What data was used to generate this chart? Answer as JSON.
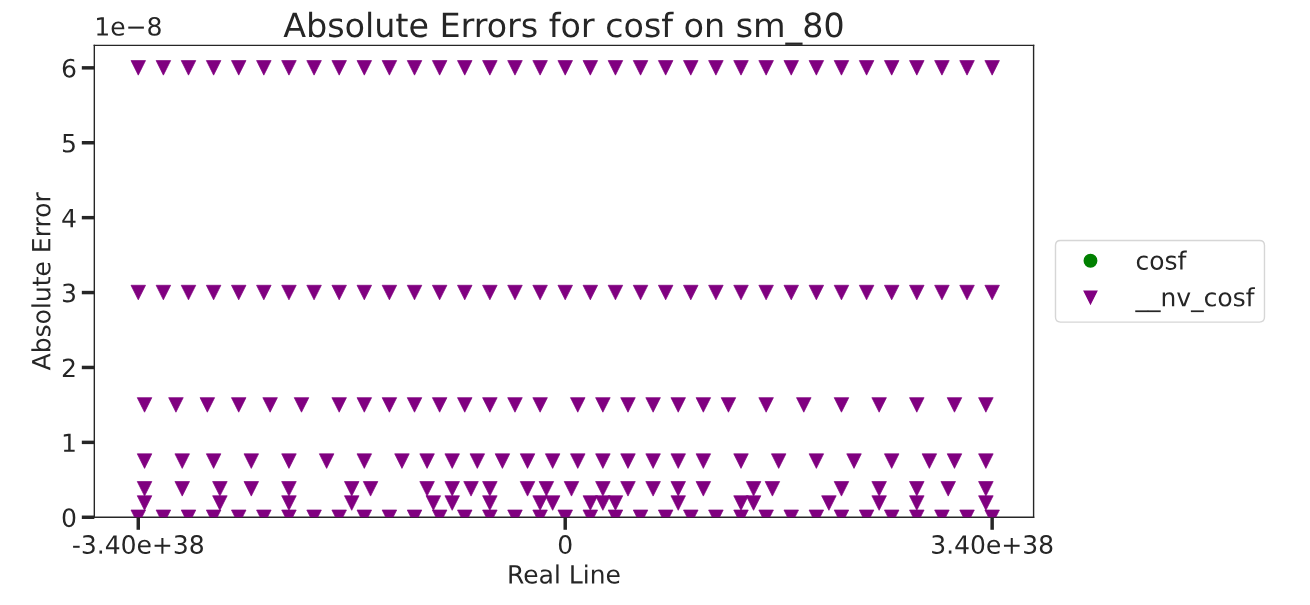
{
  "chart_data": {
    "type": "scatter",
    "title": "Absolute Errors for cosf on sm_80",
    "xlabel": "Real Line",
    "ylabel": "Absolute Error",
    "annotations": [
      "1e−8"
    ],
    "xlim": [
      -3.75e+38,
      3.73e+38
    ],
    "xticks": [
      {
        "value": -3.4e+38,
        "label": "-3.40e+38"
      },
      0,
      {
        "value": 3.4e+38,
        "label": "3.40e+38"
      }
    ],
    "ylim": [
      0,
      6.3
    ],
    "yticks": [
      0,
      1,
      2,
      3,
      4,
      5,
      6
    ],
    "grid": false,
    "legend": "right",
    "series": [
      {
        "name": "cosf",
        "color": "#008000",
        "marker": "circle"
      },
      {
        "name": "__nv_cosf",
        "color": "#800080",
        "marker": "triangle",
        "x": [
          -3.4e+38,
          -3.2e+38,
          -3e+38,
          -2.8e+38,
          -2.6e+38,
          -2.4e+38,
          -2.2e+38,
          -2e+38,
          -1.8e+38,
          -1.6e+38,
          -1.4e+38,
          -1.2e+38,
          -1e+38,
          -8e+37,
          -6e+37,
          -4e+37,
          -2e+37,
          0,
          2e+37,
          4e+37,
          6e+37,
          8e+37,
          1e+38,
          1.2e+38,
          1.4e+38,
          1.6e+38,
          1.8e+38,
          2e+38,
          2.2e+38,
          2.4e+38,
          2.6e+38,
          2.8e+38,
          3e+38,
          3.2e+38,
          3.4e+38,
          -3.4e+38,
          -3.2e+38,
          -3e+38,
          -2.8e+38,
          -2.6e+38,
          -2.4e+38,
          -2.2e+38,
          -2e+38,
          -1.8e+38,
          -1.6e+38,
          -1.4e+38,
          -1.2e+38,
          -1e+38,
          -8e+37,
          -6e+37,
          -4e+37,
          -2e+37,
          0,
          2e+37,
          4e+37,
          6e+37,
          8e+37,
          1e+38,
          1.2e+38,
          1.4e+38,
          1.6e+38,
          1.8e+38,
          2e+38,
          2.2e+38,
          2.4e+38,
          2.6e+38,
          2.8e+38,
          3e+38,
          3.2e+38,
          3.4e+38,
          -3.35e+38,
          -3.1e+38,
          -2.85e+38,
          -2.6e+38,
          -2.35e+38,
          -2.1e+38,
          -1.8e+38,
          -1.6e+38,
          -1.4e+38,
          -1.2e+38,
          -1e+38,
          -8e+37,
          -6e+37,
          -4e+37,
          -2e+37,
          1e+37,
          3e+37,
          5e+37,
          7e+37,
          9e+37,
          1.1e+38,
          1.3e+38,
          1.6e+38,
          1.9e+38,
          2.2e+38,
          2.5e+38,
          2.8e+38,
          3.1e+38,
          3.35e+38,
          -3.35e+38,
          -3.05e+38,
          -2.8e+38,
          -2.5e+38,
          -2.2e+38,
          -1.9e+38,
          -1.6e+38,
          -1.3e+38,
          -1.1e+38,
          -9e+37,
          -7e+37,
          -5e+37,
          -3e+37,
          -1e+37,
          1e+37,
          3e+37,
          5e+37,
          7e+37,
          9e+37,
          1.1e+38,
          1.4e+38,
          1.7e+38,
          2e+38,
          2.3e+38,
          2.6e+38,
          2.9e+38,
          3.1e+38,
          3.35e+38,
          -3.35e+38,
          -3.05e+38,
          -2.75e+38,
          -2.5e+38,
          -2.2e+38,
          -1.7e+38,
          -1.55e+38,
          -1.1e+38,
          -9e+37,
          -7.5e+37,
          -6e+37,
          -3e+37,
          -1.5e+37,
          5e+36,
          3e+37,
          5e+37,
          7e+37,
          9e+37,
          1.1e+38,
          1.5e+38,
          1.65e+38,
          2.2e+38,
          2.5e+38,
          2.8e+38,
          3.05e+38,
          3.35e+38,
          -3.35e+38,
          -2.75e+38,
          -2.2e+38,
          -1.7e+38,
          -1.05e+38,
          -9e+37,
          -6e+37,
          -2e+37,
          -1e+37,
          2e+37,
          3e+37,
          4e+37,
          9e+37,
          1.4e+38,
          1.5e+38,
          2.1e+38,
          2.5e+38,
          2.8e+38,
          3.35e+38,
          -3.4e+38,
          -3.2e+38,
          -3e+38,
          -2.8e+38,
          -2.6e+38,
          -2.4e+38,
          -2.2e+38,
          -2e+38,
          -1.8e+38,
          -1.6e+38,
          -1.4e+38,
          -1.2e+38,
          -1e+38,
          -8e+37,
          -6e+37,
          -4e+37,
          -2e+37,
          0,
          2e+37,
          4e+37,
          6e+37,
          8e+37,
          1e+38,
          1.2e+38,
          1.4e+38,
          1.6e+38,
          1.8e+38,
          2e+38,
          2.2e+38,
          2.4e+38,
          2.6e+38,
          2.8e+38,
          3e+38,
          3.2e+38,
          3.4e+38
        ],
        "values": [
          6,
          6,
          6,
          6,
          6,
          6,
          6,
          6,
          6,
          6,
          6,
          6,
          6,
          6,
          6,
          6,
          6,
          6,
          6,
          6,
          6,
          6,
          6,
          6,
          6,
          6,
          6,
          6,
          6,
          6,
          6,
          6,
          6,
          6,
          6,
          3,
          3,
          3,
          3,
          3,
          3,
          3,
          3,
          3,
          3,
          3,
          3,
          3,
          3,
          3,
          3,
          3,
          3,
          3,
          3,
          3,
          3,
          3,
          3,
          3,
          3,
          3,
          3,
          3,
          3,
          3,
          3,
          3,
          3,
          3,
          1.5,
          1.5,
          1.5,
          1.5,
          1.5,
          1.5,
          1.5,
          1.5,
          1.5,
          1.5,
          1.5,
          1.5,
          1.5,
          1.5,
          1.5,
          1.5,
          1.5,
          1.5,
          1.5,
          1.5,
          1.5,
          1.5,
          1.5,
          1.5,
          1.5,
          1.5,
          1.5,
          1.5,
          1.5,
          0.75,
          0.75,
          0.75,
          0.75,
          0.75,
          0.75,
          0.75,
          0.75,
          0.75,
          0.75,
          0.75,
          0.75,
          0.75,
          0.75,
          0.75,
          0.75,
          0.75,
          0.75,
          0.75,
          0.75,
          0.75,
          0.75,
          0.75,
          0.75,
          0.75,
          0.75,
          0.75,
          0.75,
          0.38,
          0.38,
          0.38,
          0.38,
          0.38,
          0.38,
          0.38,
          0.38,
          0.38,
          0.38,
          0.38,
          0.38,
          0.38,
          0.38,
          0.38,
          0.38,
          0.38,
          0.38,
          0.38,
          0.38,
          0.38,
          0.38,
          0.38,
          0.38,
          0.38,
          0.38,
          0.19,
          0.19,
          0.19,
          0.19,
          0.19,
          0.19,
          0.19,
          0.19,
          0.19,
          0.19,
          0.19,
          0.19,
          0.19,
          0.19,
          0.19,
          0.19,
          0.19,
          0.19,
          0.19,
          0,
          0,
          0,
          0,
          0,
          0,
          0,
          0,
          0,
          0,
          0,
          0,
          0,
          0,
          0,
          0,
          0,
          0,
          0,
          0,
          0,
          0,
          0,
          0,
          0,
          0,
          0,
          0,
          0,
          0,
          0,
          0,
          0,
          0,
          0
        ]
      }
    ]
  }
}
